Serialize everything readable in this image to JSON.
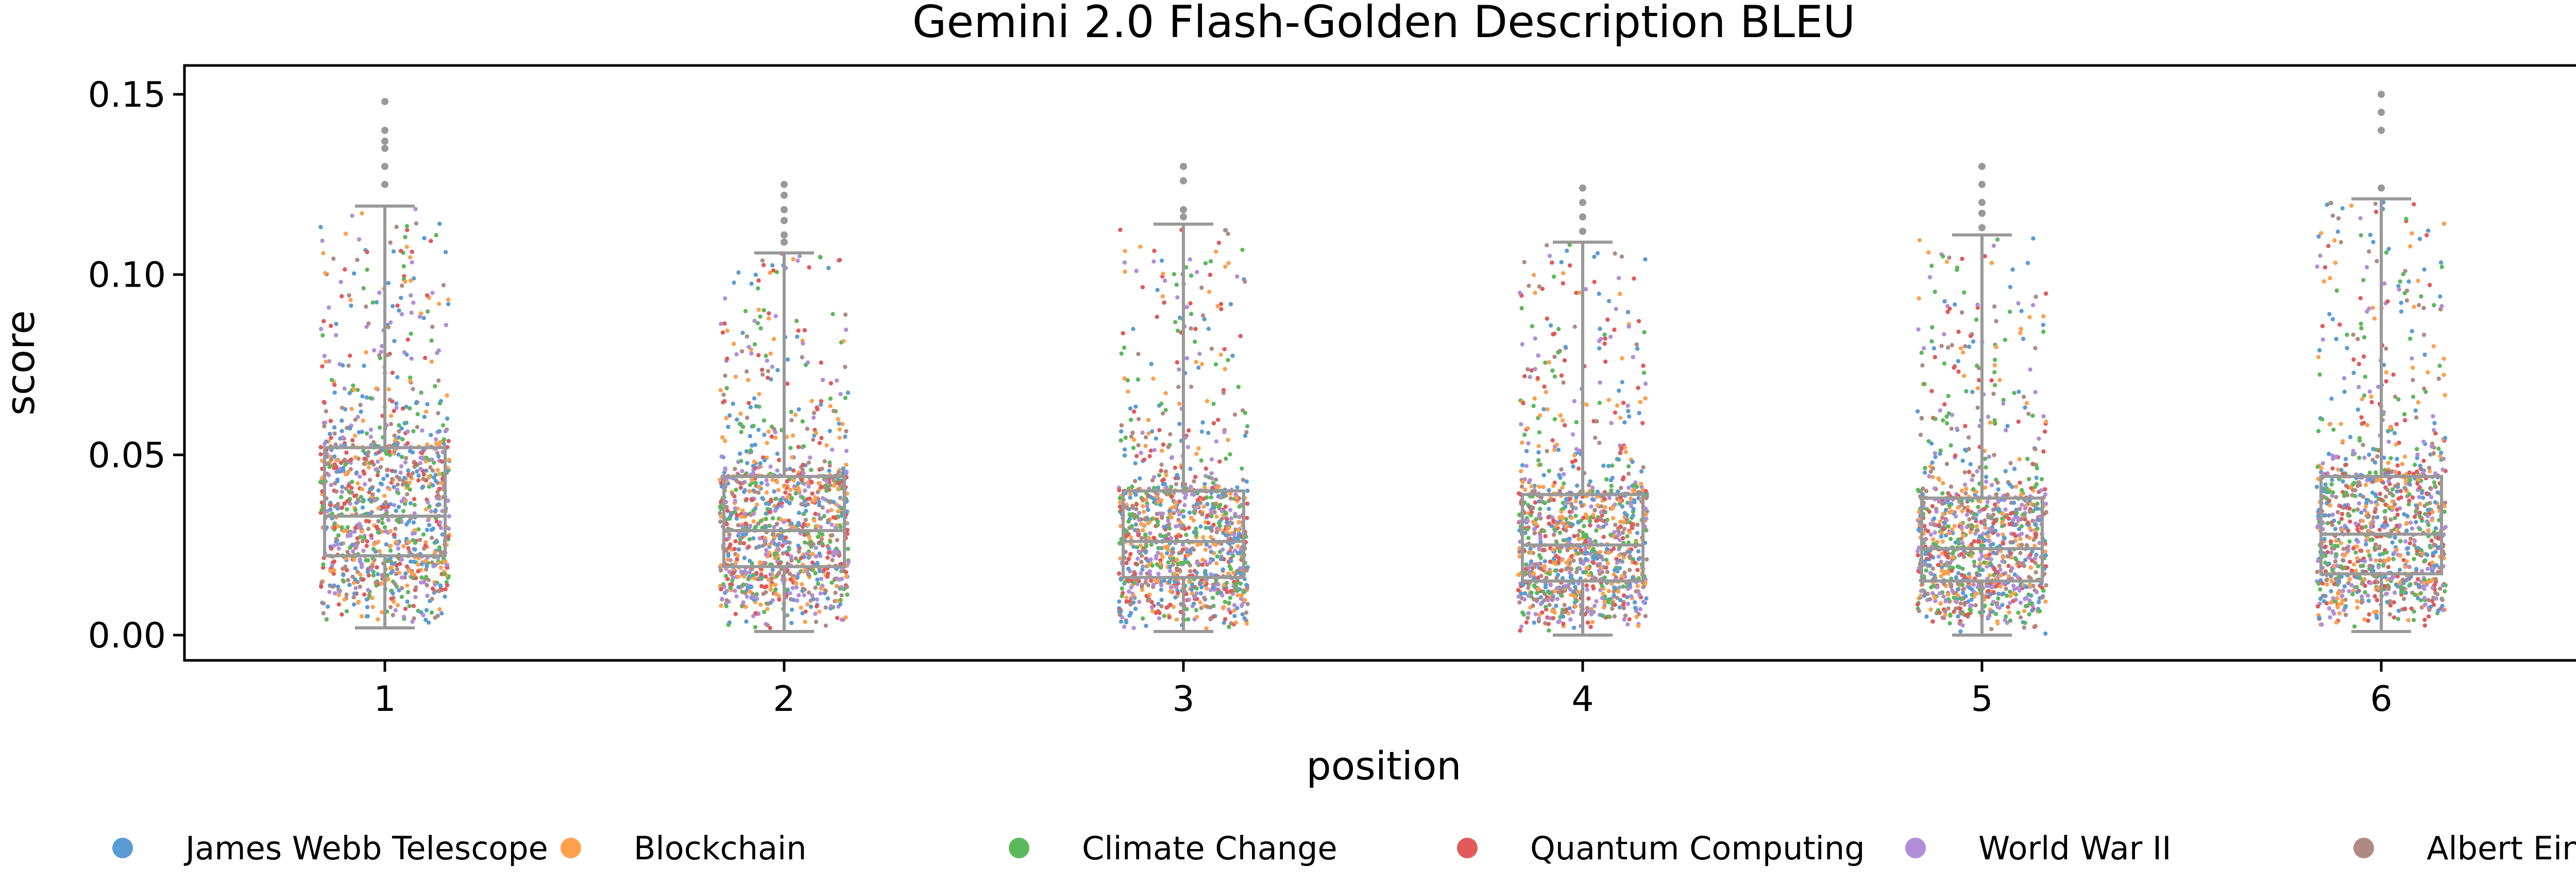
{
  "chart_data": {
    "type": "box-strip",
    "title": "Gemini 2.0 Flash-Golden Description BLEU",
    "xlabel": "position",
    "ylabel": "score",
    "categories": [
      "1",
      "2",
      "3",
      "4",
      "5",
      "6"
    ],
    "ylim": [
      -0.007,
      0.158
    ],
    "yticks": [
      "0.00",
      "0.05",
      "0.10",
      "0.15"
    ],
    "ytick_values": [
      0.0,
      0.05,
      0.1,
      0.15
    ],
    "grid": false,
    "legend_position": "bottom",
    "box_color": "#999999",
    "boxes": [
      {
        "category": "1",
        "whisker_low": 0.002,
        "q1": 0.022,
        "median": 0.033,
        "q3": 0.052,
        "whisker_high": 0.119,
        "outliers": [
          0.125,
          0.13,
          0.135,
          0.137,
          0.14,
          0.148
        ]
      },
      {
        "category": "2",
        "whisker_low": 0.001,
        "q1": 0.019,
        "median": 0.029,
        "q3": 0.044,
        "whisker_high": 0.106,
        "outliers": [
          0.109,
          0.111,
          0.115,
          0.118,
          0.122,
          0.125
        ]
      },
      {
        "category": "3",
        "whisker_low": 0.001,
        "q1": 0.016,
        "median": 0.026,
        "q3": 0.04,
        "whisker_high": 0.114,
        "outliers": [
          0.116,
          0.118,
          0.126,
          0.13
        ]
      },
      {
        "category": "4",
        "whisker_low": 0.0,
        "q1": 0.015,
        "median": 0.025,
        "q3": 0.039,
        "whisker_high": 0.109,
        "outliers": [
          0.112,
          0.116,
          0.12,
          0.124
        ]
      },
      {
        "category": "5",
        "whisker_low": 0.0,
        "q1": 0.015,
        "median": 0.024,
        "q3": 0.038,
        "whisker_high": 0.111,
        "outliers": [
          0.113,
          0.117,
          0.12,
          0.125,
          0.13
        ]
      },
      {
        "category": "6",
        "whisker_low": 0.001,
        "q1": 0.017,
        "median": 0.028,
        "q3": 0.044,
        "whisker_high": 0.121,
        "outliers": [
          0.124,
          0.14,
          0.145,
          0.15
        ]
      }
    ],
    "series": [
      {
        "name": "James Webb Telescope",
        "color": "#5b9bd5"
      },
      {
        "name": "Blockchain",
        "color": "#ffa04d"
      },
      {
        "name": "Climate Change",
        "color": "#5cb85c"
      },
      {
        "name": "Quantum Computing",
        "color": "#e05a5a"
      },
      {
        "name": "World War II",
        "color": "#b08ed8"
      },
      {
        "name": "Albert Einstein",
        "color": "#b08a82"
      }
    ]
  }
}
